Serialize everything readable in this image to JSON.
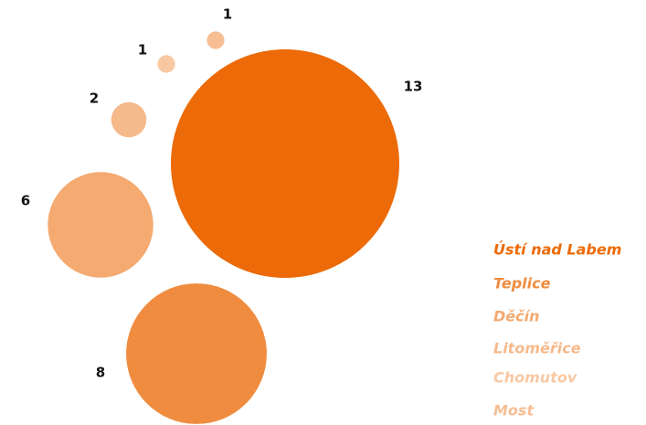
{
  "chart_data": {
    "type": "bubble",
    "categories": [
      "Ústí nad Labem",
      "Teplice",
      "Děčín",
      "Litoměřice",
      "Chomutov",
      "Most"
    ],
    "values": [
      13,
      8,
      6,
      2,
      1,
      1
    ],
    "colors": [
      "#ec6a07",
      "#f08c3f",
      "#f4aa70",
      "#f6b98a",
      "#f8c8a2",
      "#f7bd93"
    ],
    "legend": "right"
  }
}
